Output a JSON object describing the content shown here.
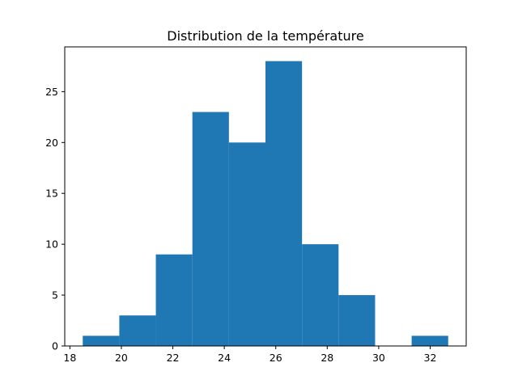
{
  "chart_data": {
    "type": "bar",
    "title": "Distribution de la température",
    "xlabel": "",
    "ylabel": "",
    "bin_edges": [
      18.5,
      19.92,
      21.34,
      22.76,
      24.18,
      25.6,
      27.02,
      28.44,
      29.86,
      31.28,
      32.7
    ],
    "values": [
      1,
      3,
      9,
      23,
      20,
      28,
      10,
      5,
      0,
      1
    ],
    "xlim": [
      17.8,
      33.4
    ],
    "ylim": [
      0,
      29.4
    ],
    "xticks": [
      18,
      20,
      22,
      24,
      26,
      28,
      30,
      32
    ],
    "yticks": [
      0,
      5,
      10,
      15,
      20,
      25
    ],
    "bar_color": "#1f77b4",
    "grid": false,
    "legend": "none"
  }
}
